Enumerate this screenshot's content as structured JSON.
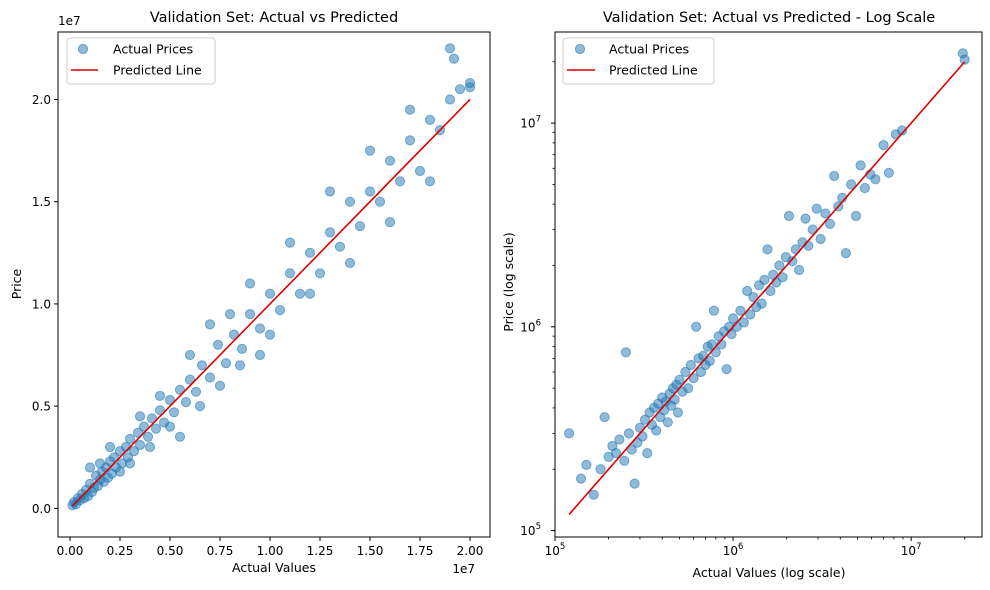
{
  "colors": {
    "points": "#1f77b4",
    "line": "#e00000",
    "axis": "#000000"
  },
  "chart_data": [
    {
      "type": "scatter",
      "title": "Validation Set: Actual vs Predicted",
      "xlabel": "Actual Values",
      "ylabel": "Price",
      "x_offset_text": "1e7",
      "y_offset_text": "1e7",
      "scale": "linear",
      "xlim": [
        -0.06,
        2.1
      ],
      "ylim": [
        -0.14,
        2.33
      ],
      "x_ticks": [
        0,
        0.25,
        0.5,
        0.75,
        1.0,
        1.25,
        1.5,
        1.75,
        2.0
      ],
      "x_tick_labels": [
        "0.00",
        "0.25",
        "0.50",
        "0.75",
        "1.00",
        "1.25",
        "1.50",
        "1.75",
        "2.00"
      ],
      "y_ticks": [
        0,
        0.5,
        1.0,
        1.5,
        2.0
      ],
      "y_tick_labels": [
        "0.0",
        "0.5",
        "1.0",
        "1.5",
        "2.0"
      ],
      "grid": false,
      "legend_position": "top-left",
      "series": [
        {
          "name": "Actual Prices",
          "kind": "scatter",
          "points": [
            [
              0.012,
              0.015
            ],
            [
              0.02,
              0.03
            ],
            [
              0.03,
              0.02
            ],
            [
              0.04,
              0.05
            ],
            [
              0.05,
              0.04
            ],
            [
              0.06,
              0.07
            ],
            [
              0.07,
              0.05
            ],
            [
              0.08,
              0.09
            ],
            [
              0.09,
              0.06
            ],
            [
              0.1,
              0.12
            ],
            [
              0.11,
              0.08
            ],
            [
              0.12,
              0.1
            ],
            [
              0.13,
              0.16
            ],
            [
              0.14,
              0.11
            ],
            [
              0.15,
              0.14
            ],
            [
              0.16,
              0.18
            ],
            [
              0.17,
              0.13
            ],
            [
              0.18,
              0.2
            ],
            [
              0.19,
              0.15
            ],
            [
              0.2,
              0.23
            ],
            [
              0.21,
              0.17
            ],
            [
              0.22,
              0.25
            ],
            [
              0.23,
              0.2
            ],
            [
              0.25,
              0.28
            ],
            [
              0.26,
              0.22
            ],
            [
              0.28,
              0.3
            ],
            [
              0.29,
              0.25
            ],
            [
              0.3,
              0.34
            ],
            [
              0.32,
              0.28
            ],
            [
              0.34,
              0.37
            ],
            [
              0.35,
              0.31
            ],
            [
              0.37,
              0.4
            ],
            [
              0.39,
              0.35
            ],
            [
              0.41,
              0.44
            ],
            [
              0.43,
              0.39
            ],
            [
              0.45,
              0.48
            ],
            [
              0.47,
              0.42
            ],
            [
              0.5,
              0.53
            ],
            [
              0.52,
              0.47
            ],
            [
              0.55,
              0.58
            ],
            [
              0.58,
              0.52
            ],
            [
              0.6,
              0.63
            ],
            [
              0.63,
              0.57
            ],
            [
              0.66,
              0.7
            ],
            [
              0.7,
              0.64
            ],
            [
              0.74,
              0.8
            ],
            [
              0.78,
              0.71
            ],
            [
              0.82,
              0.85
            ],
            [
              0.86,
              0.78
            ],
            [
              0.9,
              0.95
            ],
            [
              0.95,
              0.88
            ],
            [
              1.0,
              1.05
            ],
            [
              1.05,
              0.97
            ],
            [
              1.1,
              1.15
            ],
            [
              1.15,
              1.05
            ],
            [
              1.2,
              1.25
            ],
            [
              1.25,
              1.15
            ],
            [
              1.3,
              1.35
            ],
            [
              1.35,
              1.28
            ],
            [
              1.4,
              1.5
            ],
            [
              1.45,
              1.38
            ],
            [
              1.5,
              1.55
            ],
            [
              1.55,
              1.5
            ],
            [
              1.6,
              1.7
            ],
            [
              1.65,
              1.6
            ],
            [
              1.7,
              1.8
            ],
            [
              1.75,
              1.65
            ],
            [
              1.8,
              1.9
            ],
            [
              1.85,
              1.85
            ],
            [
              1.9,
              2.0
            ],
            [
              1.95,
              2.05
            ],
            [
              2.0,
              2.08
            ],
            [
              0.1,
              0.2
            ],
            [
              0.15,
              0.22
            ],
            [
              0.2,
              0.3
            ],
            [
              0.25,
              0.18
            ],
            [
              0.3,
              0.22
            ],
            [
              0.35,
              0.45
            ],
            [
              0.4,
              0.3
            ],
            [
              0.45,
              0.55
            ],
            [
              0.5,
              0.4
            ],
            [
              0.55,
              0.35
            ],
            [
              0.6,
              0.75
            ],
            [
              0.65,
              0.5
            ],
            [
              0.7,
              0.9
            ],
            [
              0.75,
              0.6
            ],
            [
              0.8,
              0.95
            ],
            [
              0.85,
              0.7
            ],
            [
              0.9,
              1.1
            ],
            [
              0.95,
              0.75
            ],
            [
              1.0,
              0.85
            ],
            [
              1.1,
              1.3
            ],
            [
              1.2,
              1.05
            ],
            [
              1.3,
              1.55
            ],
            [
              1.4,
              1.2
            ],
            [
              1.5,
              1.75
            ],
            [
              1.6,
              1.4
            ],
            [
              1.7,
              1.95
            ],
            [
              1.8,
              1.6
            ],
            [
              1.9,
              2.25
            ],
            [
              1.92,
              2.2
            ],
            [
              2.0,
              2.06
            ]
          ]
        },
        {
          "name": "Predicted Line",
          "kind": "line",
          "points": [
            [
              0.012,
              0.012
            ],
            [
              2.0,
              2.0
            ]
          ]
        }
      ]
    },
    {
      "type": "scatter",
      "title": "Validation Set: Actual vs Predicted - Log Scale",
      "xlabel": "Actual Values (log scale)",
      "ylabel": "Price (log scale)",
      "scale": "log",
      "xlim": [
        100000,
        25000000
      ],
      "ylim": [
        93000,
        28000000
      ],
      "x_ticks": [
        100000,
        1000000,
        10000000
      ],
      "y_ticks": [
        100000,
        1000000,
        10000000
      ],
      "tick_label_base": "10",
      "tick_exponents": [
        "5",
        "6",
        "7"
      ],
      "grid": false,
      "legend_position": "top-left",
      "series": [
        {
          "name": "Actual Prices",
          "kind": "scatter",
          "points": [
            [
              120000,
              300000
            ],
            [
              140000,
              180000
            ],
            [
              150000,
              210000
            ],
            [
              165000,
              150000
            ],
            [
              180000,
              200000
            ],
            [
              190000,
              360000
            ],
            [
              200000,
              230000
            ],
            [
              210000,
              260000
            ],
            [
              220000,
              240000
            ],
            [
              230000,
              280000
            ],
            [
              245000,
              220000
            ],
            [
              250000,
              750000
            ],
            [
              260000,
              300000
            ],
            [
              270000,
              250000
            ],
            [
              280000,
              170000
            ],
            [
              290000,
              270000
            ],
            [
              300000,
              320000
            ],
            [
              310000,
              290000
            ],
            [
              320000,
              350000
            ],
            [
              330000,
              240000
            ],
            [
              340000,
              380000
            ],
            [
              350000,
              330000
            ],
            [
              360000,
              400000
            ],
            [
              370000,
              310000
            ],
            [
              380000,
              420000
            ],
            [
              390000,
              360000
            ],
            [
              400000,
              450000
            ],
            [
              410000,
              390000
            ],
            [
              420000,
              430000
            ],
            [
              430000,
              340000
            ],
            [
              440000,
              470000
            ],
            [
              450000,
              410000
            ],
            [
              460000,
              500000
            ],
            [
              470000,
              440000
            ],
            [
              480000,
              520000
            ],
            [
              490000,
              380000
            ],
            [
              500000,
              550000
            ],
            [
              520000,
              480000
            ],
            [
              540000,
              600000
            ],
            [
              560000,
              500000
            ],
            [
              580000,
              650000
            ],
            [
              600000,
              560000
            ],
            [
              620000,
              1000000
            ],
            [
              640000,
              700000
            ],
            [
              660000,
              600000
            ],
            [
              680000,
              720000
            ],
            [
              700000,
              650000
            ],
            [
              720000,
              800000
            ],
            [
              740000,
              680000
            ],
            [
              760000,
              820000
            ],
            [
              780000,
              1200000
            ],
            [
              800000,
              750000
            ],
            [
              830000,
              900000
            ],
            [
              860000,
              820000
            ],
            [
              890000,
              950000
            ],
            [
              920000,
              620000
            ],
            [
              950000,
              1000000
            ],
            [
              980000,
              920000
            ],
            [
              1000000,
              1100000
            ],
            [
              1050000,
              1000000
            ],
            [
              1100000,
              1200000
            ],
            [
              1150000,
              1050000
            ],
            [
              1200000,
              1500000
            ],
            [
              1250000,
              1150000
            ],
            [
              1300000,
              1400000
            ],
            [
              1350000,
              1250000
            ],
            [
              1400000,
              1600000
            ],
            [
              1450000,
              1300000
            ],
            [
              1500000,
              1700000
            ],
            [
              1560000,
              2400000
            ],
            [
              1620000,
              1500000
            ],
            [
              1680000,
              1800000
            ],
            [
              1750000,
              1650000
            ],
            [
              1820000,
              2000000
            ],
            [
              1900000,
              1750000
            ],
            [
              1980000,
              2200000
            ],
            [
              2060000,
              3500000
            ],
            [
              2150000,
              2100000
            ],
            [
              2250000,
              2400000
            ],
            [
              2350000,
              1900000
            ],
            [
              2450000,
              2600000
            ],
            [
              2550000,
              3400000
            ],
            [
              2650000,
              2500000
            ],
            [
              2800000,
              3000000
            ],
            [
              2950000,
              3800000
            ],
            [
              3100000,
              2700000
            ],
            [
              3300000,
              3600000
            ],
            [
              3500000,
              3200000
            ],
            [
              3700000,
              5500000
            ],
            [
              3900000,
              3900000
            ],
            [
              4100000,
              4300000
            ],
            [
              4300000,
              2300000
            ],
            [
              4600000,
              5000000
            ],
            [
              4900000,
              3500000
            ],
            [
              5200000,
              6200000
            ],
            [
              5500000,
              4800000
            ],
            [
              5900000,
              5600000
            ],
            [
              6300000,
              5300000
            ],
            [
              7000000,
              7800000
            ],
            [
              7500000,
              5700000
            ],
            [
              8200000,
              8800000
            ],
            [
              8900000,
              9200000
            ],
            [
              19500000,
              22000000
            ],
            [
              20000000,
              20500000
            ]
          ]
        },
        {
          "name": "Predicted Line",
          "kind": "line",
          "points": [
            [
              120000,
              120000
            ],
            [
              20000000,
              20000000
            ]
          ]
        }
      ]
    }
  ]
}
